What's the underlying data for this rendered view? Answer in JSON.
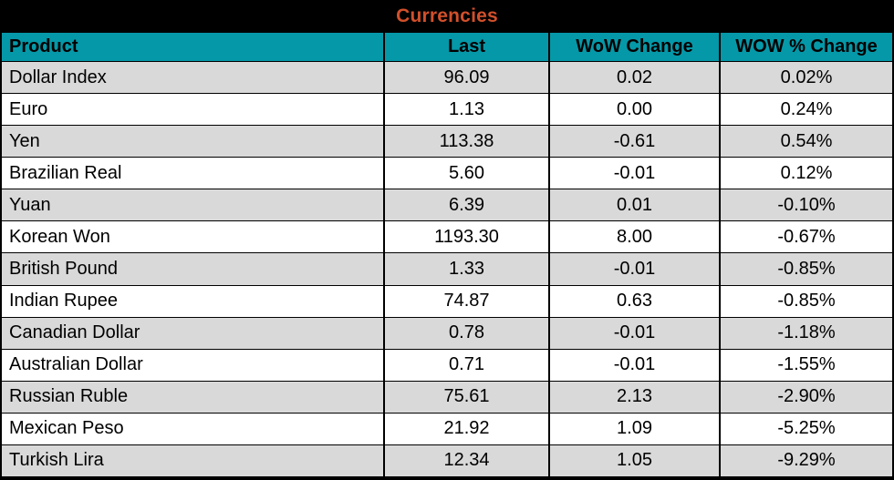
{
  "title": "Currencies",
  "colors": {
    "title_text": "#d1502b",
    "title_bg": "#000000",
    "header_bg": "#0598a8",
    "header_text": "#000000",
    "row_bg": "#ffffff",
    "row_alt_bg": "#d9d9d9",
    "border": "#000000",
    "body_text": "#000000"
  },
  "chart_data": {
    "type": "table",
    "title": "Currencies",
    "columns": [
      "Product",
      "Last",
      "WoW Change",
      "WOW % Change"
    ],
    "rows": [
      [
        "Dollar Index",
        "96.09",
        "0.02",
        "0.02%"
      ],
      [
        "Euro",
        "1.13",
        "0.00",
        "0.24%"
      ],
      [
        "Yen",
        "113.38",
        "-0.61",
        "0.54%"
      ],
      [
        "Brazilian Real",
        "5.60",
        "-0.01",
        "0.12%"
      ],
      [
        "Yuan",
        "6.39",
        "0.01",
        "-0.10%"
      ],
      [
        "Korean Won",
        "1193.30",
        "8.00",
        "-0.67%"
      ],
      [
        "British Pound",
        "1.33",
        "-0.01",
        "-0.85%"
      ],
      [
        "Indian Rupee",
        "74.87",
        "0.63",
        "-0.85%"
      ],
      [
        "Canadian Dollar",
        "0.78",
        "-0.01",
        "-1.18%"
      ],
      [
        "Australian Dollar",
        "0.71",
        "-0.01",
        "-1.55%"
      ],
      [
        "Russian Ruble",
        "75.61",
        "2.13",
        "-2.90%"
      ],
      [
        "Mexican Peso",
        "21.92",
        "1.09",
        "-5.25%"
      ],
      [
        "Turkish Lira",
        "12.34",
        "1.05",
        "-9.29%"
      ]
    ],
    "layout": {
      "striped": true,
      "first_data_row_shaded": true,
      "numeric_alignment": "center",
      "product_alignment": "left"
    }
  }
}
